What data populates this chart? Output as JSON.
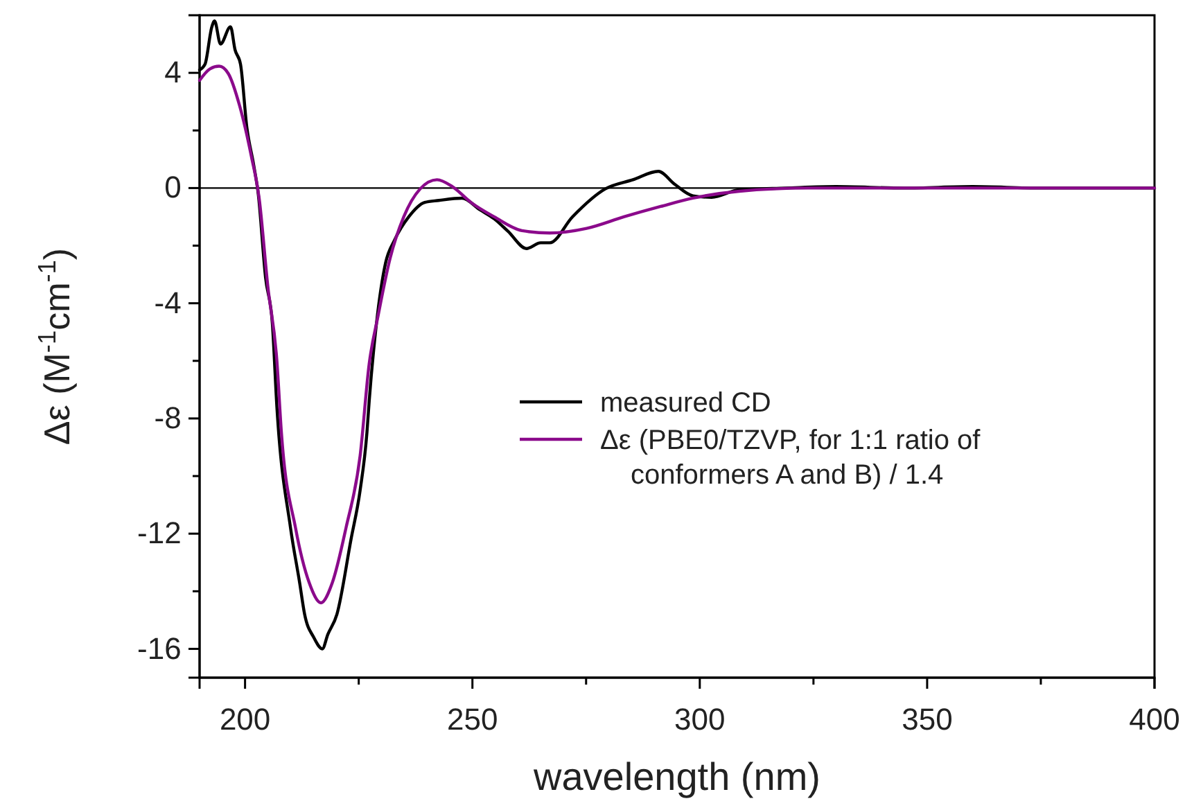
{
  "chart_data": {
    "type": "line",
    "xlabel": "wavelength (nm)",
    "ylabel": "Δε (M$^{-1}$cm$^{-1}$)",
    "xlim": [
      190,
      400
    ],
    "xticks": [
      200,
      {
        "value": 225,
        "label": null
      },
      250,
      {
        "value": 275,
        "label": null
      },
      300,
      {
        "value": 325,
        "label": null
      },
      350,
      {
        "value": 375,
        "label": null
      },
      400
    ],
    "ylim": [
      -17,
      6
    ],
    "yticks": [
      -16,
      {
        "value": -14,
        "label": null
      },
      -12,
      {
        "value": -10,
        "label": null
      },
      -8,
      {
        "value": -6,
        "label": null
      },
      -4,
      {
        "value": -2,
        "label": null
      },
      0,
      {
        "value": 2,
        "label": null
      },
      4
    ],
    "grid": false,
    "legend": "right",
    "line_style": "solid",
    "marker": "none",
    "ref_lines": [
      {
        "axis": "y",
        "value": 0,
        "color": "#000000"
      }
    ],
    "series": [
      {
        "name": "measured CD",
        "color": "#000000",
        "x": [
          190,
          191.2,
          192.7,
          193.3,
          194.6,
          196.8,
          197.8,
          199,
          200.4,
          201.9,
          202.9,
          204.5,
          206,
          207,
          210,
          212,
          213.1,
          215.1,
          217,
          218.2,
          220.2,
          223.3,
          225.3,
          226.8,
          227.3,
          228.9,
          230.9,
          232.9,
          236,
          239.5,
          242.6,
          247.7,
          251.7,
          254.8,
          257.8,
          261.9,
          265,
          267,
          272,
          279.2,
          285.3,
          290.9,
          294.5,
          298.5,
          302.6,
          308.7,
          318.9,
          330,
          345,
          360,
          375,
          390,
          400
        ],
        "values": [
          4.1,
          4.3,
          5.6,
          5.8,
          5.0,
          5.6,
          4.8,
          4.3,
          2.1,
          0.8,
          -0.2,
          -3.1,
          -4.7,
          -7.6,
          -11.8,
          -13.7,
          -14.8,
          -15.6,
          -16.0,
          -15.5,
          -14.8,
          -12.2,
          -10.5,
          -8.5,
          -7.4,
          -4.7,
          -2.6,
          -1.8,
          -1.0,
          -0.5,
          -0.43,
          -0.35,
          -0.76,
          -1.07,
          -1.5,
          -2.1,
          -1.9,
          -1.9,
          -1.0,
          -0.03,
          0.29,
          0.58,
          0.13,
          -0.27,
          -0.32,
          -0.06,
          0.0,
          0.05,
          0.0,
          0.05,
          0.0,
          0.0,
          0.0
        ]
      },
      {
        "name": "Δε (PBE0/TZVP, for 1:1 ratio of conformers A and B) / 1.4",
        "color": "#8b0a8b",
        "x": [
          190,
          192.3,
          194.3,
          196.3,
          198.8,
          201.4,
          203.1,
          205,
          207,
          208,
          211.1,
          214.1,
          216.7,
          219.2,
          222.2,
          225.3,
          227.3,
          229.3,
          231.9,
          234.9,
          238.5,
          242.2,
          245.6,
          249.7,
          254.8,
          260.9,
          267,
          275.1,
          283.3,
          291.4,
          298.5,
          308.7,
          323.8,
          350,
          400
        ],
        "values": [
          3.74,
          4.14,
          4.23,
          3.98,
          2.86,
          1.09,
          -0.35,
          -3.4,
          -6.0,
          -8.5,
          -11.8,
          -13.7,
          -14.4,
          -13.7,
          -11.8,
          -9.3,
          -6.1,
          -4.4,
          -2.44,
          -1.0,
          -0.03,
          0.29,
          0.05,
          -0.5,
          -1.0,
          -1.48,
          -1.56,
          -1.4,
          -1.0,
          -0.64,
          -0.35,
          -0.11,
          0.0,
          0.0,
          0.0
        ]
      }
    ]
  }
}
